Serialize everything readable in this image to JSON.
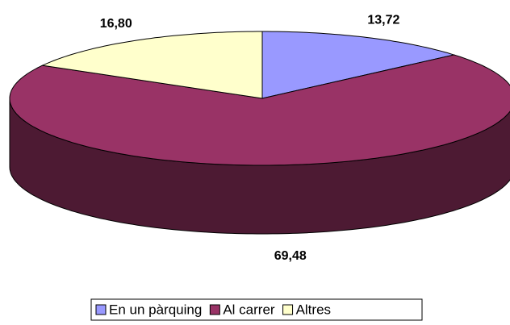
{
  "chart_data": {
    "type": "pie",
    "three_d": true,
    "categories": [
      "En un pàrquing",
      "Al carrer",
      "Altres"
    ],
    "values": [
      13.72,
      69.48,
      16.8
    ],
    "value_labels": [
      "13,72",
      "69,48",
      "16,80"
    ],
    "colors": [
      "#9999ff",
      "#993366",
      "#ffffcc"
    ],
    "legend": "bottom"
  }
}
